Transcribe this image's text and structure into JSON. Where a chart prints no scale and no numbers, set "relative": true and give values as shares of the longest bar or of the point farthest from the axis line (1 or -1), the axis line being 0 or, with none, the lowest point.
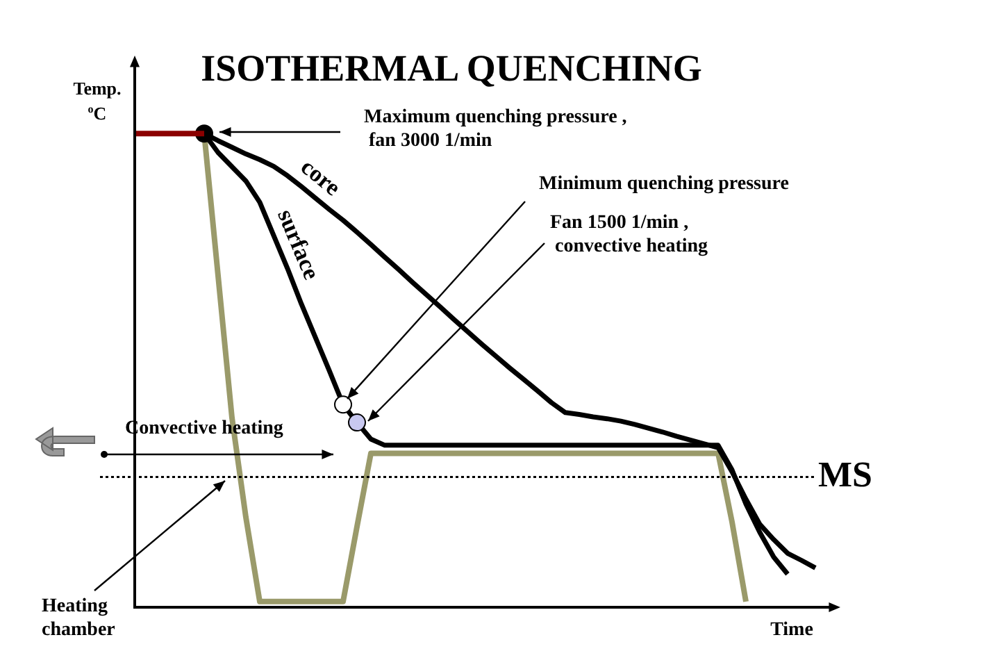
{
  "chart_data": {
    "type": "line",
    "title": "ISOTHERMAL QUENCHING",
    "xlabel": "Time",
    "ylabel": "Temp.\n$^{o}$C",
    "relative": true,
    "categories": [
      null,
      null,
      null,
      null,
      null,
      null,
      null,
      null,
      null,
      null,
      null,
      null,
      null,
      null,
      null,
      null,
      null,
      null,
      null,
      null,
      null,
      null,
      null,
      null,
      null,
      null,
      null,
      null,
      null,
      null,
      null,
      null,
      null,
      null,
      null,
      null,
      null,
      null,
      null,
      null,
      null,
      null,
      null,
      null,
      null,
      null,
      null,
      null,
      null,
      null,
      null
    ],
    "series": [
      {
        "color": "#8b0000",
        "values": [
          1,
          1,
          1,
          1,
          1,
          1,
          null,
          null,
          null,
          null,
          null,
          null,
          null,
          null,
          null,
          null,
          null,
          null,
          null,
          null,
          null,
          null,
          null,
          null,
          null,
          null,
          null,
          null,
          null,
          null,
          null,
          null,
          null,
          null,
          null,
          null,
          null,
          null,
          null,
          null,
          null,
          null,
          null,
          null,
          null,
          null,
          null,
          null,
          null,
          null,
          null
        ]
      },
      {
        "name": "core",
        "color": "#000000",
        "values": [
          null,
          null,
          null,
          null,
          null,
          1,
          0.985,
          0.971,
          0.957,
          0.945,
          0.931,
          0.911,
          0.888,
          0.864,
          0.84,
          0.817,
          0.792,
          0.766,
          0.739,
          0.713,
          0.686,
          0.66,
          0.634,
          0.607,
          0.581,
          0.555,
          0.53,
          0.505,
          0.481,
          0.457,
          0.432,
          0.411,
          0.407,
          0.402,
          0.398,
          0.393,
          0.386,
          0.378,
          0.37,
          0.361,
          0.353,
          0.345,
          0.337,
          0.286,
          0.228,
          0.175,
          0.143,
          0.114,
          0.099,
          0.083,
          null
        ]
      },
      {
        "name": "surface",
        "color": "#000000",
        "colors": [
          null,
          null,
          null,
          null,
          null,
          "#000000",
          null,
          null,
          null,
          null,
          null,
          null,
          null,
          null,
          null,
          "#ffffff",
          "#c8c8f0",
          null,
          null,
          null,
          null,
          null,
          null,
          null,
          null,
          null,
          null,
          null,
          null,
          null,
          null,
          null,
          null,
          null,
          null,
          null,
          null,
          null,
          null,
          null,
          null,
          null,
          null,
          null,
          null,
          null,
          null,
          null,
          null,
          null,
          null
        ],
        "values": [
          null,
          null,
          null,
          null,
          null,
          1,
          0.96,
          0.93,
          0.9,
          0.855,
          0.785,
          0.715,
          0.64,
          0.57,
          0.5,
          0.428,
          0.39,
          0.355,
          0.342,
          0.342,
          0.342,
          0.342,
          0.342,
          0.342,
          0.342,
          0.342,
          0.342,
          0.342,
          0.342,
          0.342,
          0.342,
          0.342,
          0.342,
          0.342,
          0.342,
          0.342,
          0.342,
          0.342,
          0.342,
          0.342,
          0.342,
          0.342,
          0.342,
          0.29,
          0.218,
          0.158,
          0.106,
          0.07,
          null,
          null,
          null
        ]
      },
      {
        "color": "#9a9a6a",
        "values": [
          null,
          null,
          null,
          null,
          null,
          1,
          0.7,
          0.4,
          0.19,
          0.012,
          0.012,
          0.012,
          0.012,
          0.012,
          0.012,
          0.012,
          0.17,
          0.325,
          0.325,
          0.325,
          0.325,
          0.325,
          0.325,
          0.325,
          0.325,
          0.325,
          0.325,
          0.325,
          0.325,
          0.325,
          0.325,
          0.325,
          0.325,
          0.325,
          0.325,
          0.325,
          0.325,
          0.325,
          0.325,
          0.325,
          0.325,
          0.325,
          0.325,
          0.18,
          0.012,
          null,
          null,
          null,
          null,
          null,
          null
        ]
      }
    ],
    "ref_lines": [
      {
        "axis": "y",
        "value": 0.275,
        "label": "MS",
        "line_style": "dotted"
      }
    ],
    "annotations": [
      "Maximum quenching pressure ,\n fan 3000 1/min",
      "Minimum quenching pressure",
      "Fan 1500 1/min ,\n convective heating",
      "Convective heating",
      "Heating\nchamber"
    ]
  }
}
